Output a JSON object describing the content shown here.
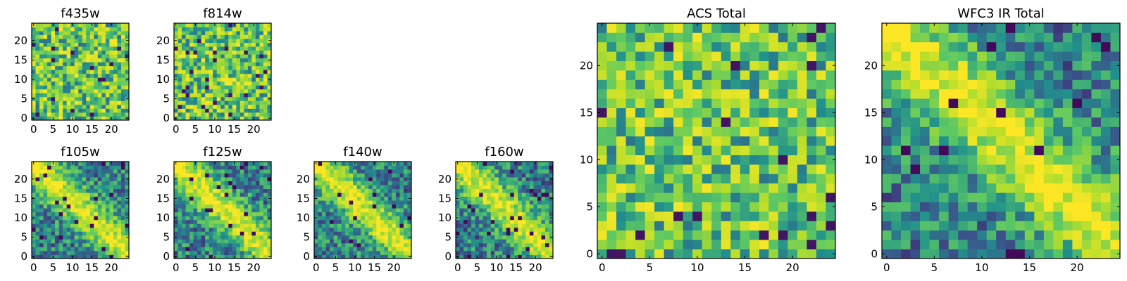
{
  "chart_data": [
    {
      "type": "heatmap",
      "title": "f435w",
      "size": "small",
      "pattern": "noise",
      "xlim": [
        0,
        24
      ],
      "ylim": [
        0,
        24
      ],
      "xticks": [
        0,
        5,
        10,
        15,
        20
      ],
      "yticks": [
        0,
        5,
        10,
        15,
        20
      ],
      "seed": 11
    },
    {
      "type": "heatmap",
      "title": "f814w",
      "size": "small",
      "pattern": "noise",
      "xlim": [
        0,
        24
      ],
      "ylim": [
        0,
        24
      ],
      "xticks": [
        0,
        5,
        10,
        15,
        20
      ],
      "yticks": [
        0,
        5,
        10,
        15,
        20
      ],
      "seed": 23
    },
    {
      "type": "heatmap",
      "title": "f105w",
      "size": "small",
      "pattern": "diagonal",
      "xlim": [
        0,
        24
      ],
      "ylim": [
        0,
        24
      ],
      "xticks": [
        0,
        5,
        10,
        15,
        20
      ],
      "yticks": [
        0,
        5,
        10,
        15,
        20
      ],
      "seed": 37
    },
    {
      "type": "heatmap",
      "title": "f125w",
      "size": "small",
      "pattern": "diagonal",
      "xlim": [
        0,
        24
      ],
      "ylim": [
        0,
        24
      ],
      "xticks": [
        0,
        5,
        10,
        15,
        20
      ],
      "yticks": [
        0,
        5,
        10,
        15,
        20
      ],
      "seed": 41
    },
    {
      "type": "heatmap",
      "title": "f140w",
      "size": "small",
      "pattern": "diagonal",
      "xlim": [
        0,
        24
      ],
      "ylim": [
        0,
        24
      ],
      "xticks": [
        0,
        5,
        10,
        15,
        20
      ],
      "yticks": [
        0,
        5,
        10,
        15,
        20
      ],
      "seed": 53
    },
    {
      "type": "heatmap",
      "title": "f160w",
      "size": "small",
      "pattern": "diagonal",
      "xlim": [
        0,
        24
      ],
      "ylim": [
        0,
        24
      ],
      "xticks": [
        0,
        5,
        10,
        15,
        20
      ],
      "yticks": [
        0,
        5,
        10,
        15,
        20
      ],
      "seed": 67
    },
    {
      "type": "heatmap",
      "title": "ACS Total",
      "size": "large",
      "pattern": "noise",
      "xlim": [
        0,
        24
      ],
      "ylim": [
        0,
        24
      ],
      "xticks": [
        0,
        5,
        10,
        15,
        20
      ],
      "yticks": [
        0,
        5,
        10,
        15,
        20
      ],
      "seed": 79
    },
    {
      "type": "heatmap",
      "title": "WFC3 IR Total",
      "size": "large",
      "pattern": "diagonal",
      "xlim": [
        0,
        24
      ],
      "ylim": [
        0,
        24
      ],
      "xticks": [
        0,
        5,
        10,
        15,
        20
      ],
      "yticks": [
        0,
        5,
        10,
        15,
        20
      ],
      "seed": 97
    }
  ],
  "colormap": [
    "#440154",
    "#3b528b",
    "#21918c",
    "#5ec962",
    "#b5de2b",
    "#fde725"
  ]
}
